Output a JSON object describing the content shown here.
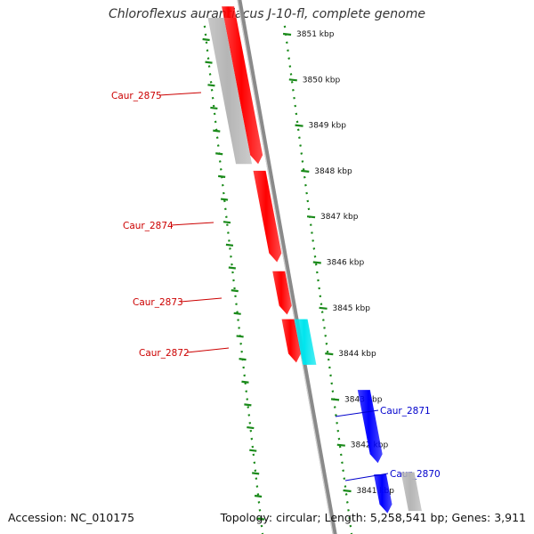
{
  "title": "Chloroflexus aurantiacus J-10-fl, complete genome",
  "footer": {
    "accession": "Accession: NC_010175",
    "summary": "Topology: circular; Length: 5,258,541 bp; Genes: 3,911"
  },
  "colors": {
    "forward_gene": "#ff0000",
    "reverse_gene": "#0000ff",
    "gray_feature": "#b5b5b5",
    "rna_feature": "#00e5ee",
    "ticks": "#1a8a1a",
    "backbone": "#8a8a8a",
    "forward_label": "#cc0000",
    "reverse_label": "#0000cc"
  },
  "scale": {
    "unit": "kbp",
    "ticks": [
      {
        "kbp": 3851,
        "label": "3851 kbp"
      },
      {
        "kbp": 3850,
        "label": "3850 kbp"
      },
      {
        "kbp": 3849,
        "label": "3849 kbp"
      },
      {
        "kbp": 3848,
        "label": "3848 kbp"
      },
      {
        "kbp": 3847,
        "label": "3847 kbp"
      },
      {
        "kbp": 3846,
        "label": "3846 kbp"
      },
      {
        "kbp": 3845,
        "label": "3845 kbp"
      },
      {
        "kbp": 3844,
        "label": "3844 kbp"
      },
      {
        "kbp": 3843,
        "label": "3843 kbp"
      },
      {
        "kbp": 3842,
        "label": "3842 kbp"
      },
      {
        "kbp": 3841,
        "label": "3841 kbp"
      }
    ]
  },
  "features": [
    {
      "id": "f-top",
      "strand": "forward",
      "type": "gene",
      "from_kbp": 3851.6,
      "to_kbp": 3851.35,
      "label": ""
    },
    {
      "id": "f-2875",
      "strand": "forward",
      "type": "gene",
      "from_kbp": 3851.35,
      "to_kbp": 3848.15,
      "label": "Caur_2875"
    },
    {
      "id": "g-2875",
      "strand": "forward",
      "type": "gray",
      "from_kbp": 3851.35,
      "to_kbp": 3848.15,
      "label": ""
    },
    {
      "id": "f-2874",
      "strand": "forward",
      "type": "gene",
      "from_kbp": 3848.0,
      "to_kbp": 3846.0,
      "label": "Caur_2874"
    },
    {
      "id": "f-2873",
      "strand": "forward",
      "type": "gene",
      "from_kbp": 3845.8,
      "to_kbp": 3844.85,
      "label": "Caur_2873"
    },
    {
      "id": "f-2872",
      "strand": "forward",
      "type": "gene",
      "from_kbp": 3844.75,
      "to_kbp": 3843.8,
      "label": "Caur_2872"
    },
    {
      "id": "c-2872",
      "strand": "forward",
      "type": "rna",
      "from_kbp": 3844.75,
      "to_kbp": 3843.75,
      "label": ""
    },
    {
      "id": "r-2871",
      "strand": "reverse",
      "type": "gene",
      "from_kbp": 3843.2,
      "to_kbp": 3841.6,
      "label": "Caur_2871"
    },
    {
      "id": "r-2870",
      "strand": "reverse",
      "type": "gene",
      "from_kbp": 3841.35,
      "to_kbp": 3840.5,
      "label": "Caur_2870"
    },
    {
      "id": "g-2870",
      "strand": "reverse",
      "type": "gray",
      "from_kbp": 3841.4,
      "to_kbp": 3840.55,
      "label": ""
    }
  ]
}
